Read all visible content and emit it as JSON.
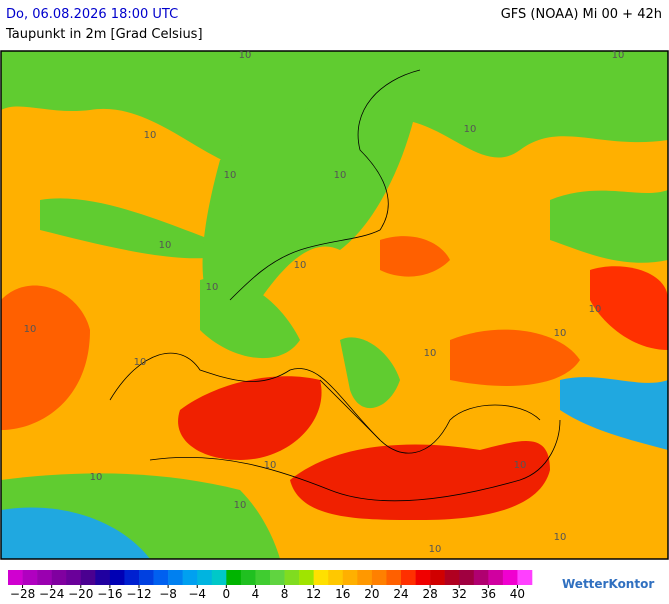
{
  "header": {
    "datetime": "Do, 06.08.2026 18:00 UTC",
    "parameter": "Taupunkt in 2m [Grad Celsius]",
    "model": "GFS (NOAA) Mi 00 + 42h"
  },
  "map": {
    "contour_labels": [
      10,
      10,
      10,
      10,
      10,
      10,
      10,
      10,
      10,
      10,
      10,
      10,
      10,
      10,
      10,
      10,
      10,
      10,
      10,
      10
    ]
  },
  "colorbar": {
    "lim": [
      -30,
      42
    ],
    "colors": [
      "#d000d0",
      "#b000c0",
      "#9a00b0",
      "#8000a0",
      "#6a009a",
      "#4a0090",
      "#2000a0",
      "#0000b4",
      "#0020d0",
      "#0040e0",
      "#0060f0",
      "#0080f0",
      "#00a0f0",
      "#00b4e0",
      "#00c8c8",
      "#00b400",
      "#20c020",
      "#40cc30",
      "#60d440",
      "#80dc20",
      "#a0e400",
      "#ffe000",
      "#ffc800",
      "#ffb000",
      "#ff9800",
      "#ff8000",
      "#ff6000",
      "#ff3000",
      "#f00000",
      "#d00000",
      "#b00020",
      "#a00040",
      "#b00070",
      "#d000a0",
      "#f000d0",
      "#ff40ff"
    ],
    "ticks": [
      {
        "value": -28,
        "label": "−28"
      },
      {
        "value": -24,
        "label": "−24"
      },
      {
        "value": -20,
        "label": "−20"
      },
      {
        "value": -16,
        "label": "−16"
      },
      {
        "value": -12,
        "label": "−12"
      },
      {
        "value": -8,
        "label": "−8"
      },
      {
        "value": -4,
        "label": "−4"
      },
      0,
      4,
      8,
      12,
      16,
      20,
      24,
      28,
      32,
      36,
      40
    ]
  },
  "logo": "WetterKontor"
}
